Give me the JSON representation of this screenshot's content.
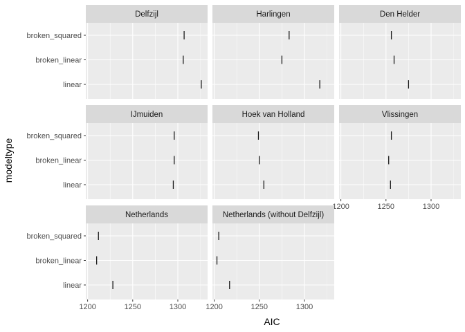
{
  "chart_data": {
    "type": "scatter",
    "marker": "vertical-tick",
    "xlabel": "AIC",
    "ylabel": "modeltype",
    "categories": [
      "broken_squared",
      "broken_linear",
      "linear"
    ],
    "x_ticks": [
      1200,
      1250,
      1300
    ],
    "xlim": [
      1198,
      1333
    ],
    "grid": true,
    "colors": {
      "panel_bg": "#ebebeb",
      "grid_major": "#ffffff",
      "strip_bg": "#d9d9d9",
      "mark": "#1a1a1a"
    },
    "panels": [
      {
        "name": "Delfzijl",
        "values": {
          "broken_squared": 1307,
          "broken_linear": 1306,
          "linear": 1326
        }
      },
      {
        "name": "Harlingen",
        "values": {
          "broken_squared": 1283,
          "broken_linear": 1275,
          "linear": 1317
        }
      },
      {
        "name": "Den Helder",
        "values": {
          "broken_squared": 1256,
          "broken_linear": 1259,
          "linear": 1275
        }
      },
      {
        "name": "IJmuiden",
        "values": {
          "broken_squared": 1296,
          "broken_linear": 1296,
          "linear": 1295
        }
      },
      {
        "name": "Hoek van Holland",
        "values": {
          "broken_squared": 1249,
          "broken_linear": 1250,
          "linear": 1255
        }
      },
      {
        "name": "Vlissingen",
        "values": {
          "broken_squared": 1256,
          "broken_linear": 1253,
          "linear": 1255
        }
      },
      {
        "name": "Netherlands",
        "values": {
          "broken_squared": 1212,
          "broken_linear": 1210,
          "linear": 1228
        }
      },
      {
        "name": "Netherlands (without Delfzijl)",
        "values": {
          "broken_squared": 1205,
          "broken_linear": 1203,
          "linear": 1217
        }
      }
    ]
  }
}
